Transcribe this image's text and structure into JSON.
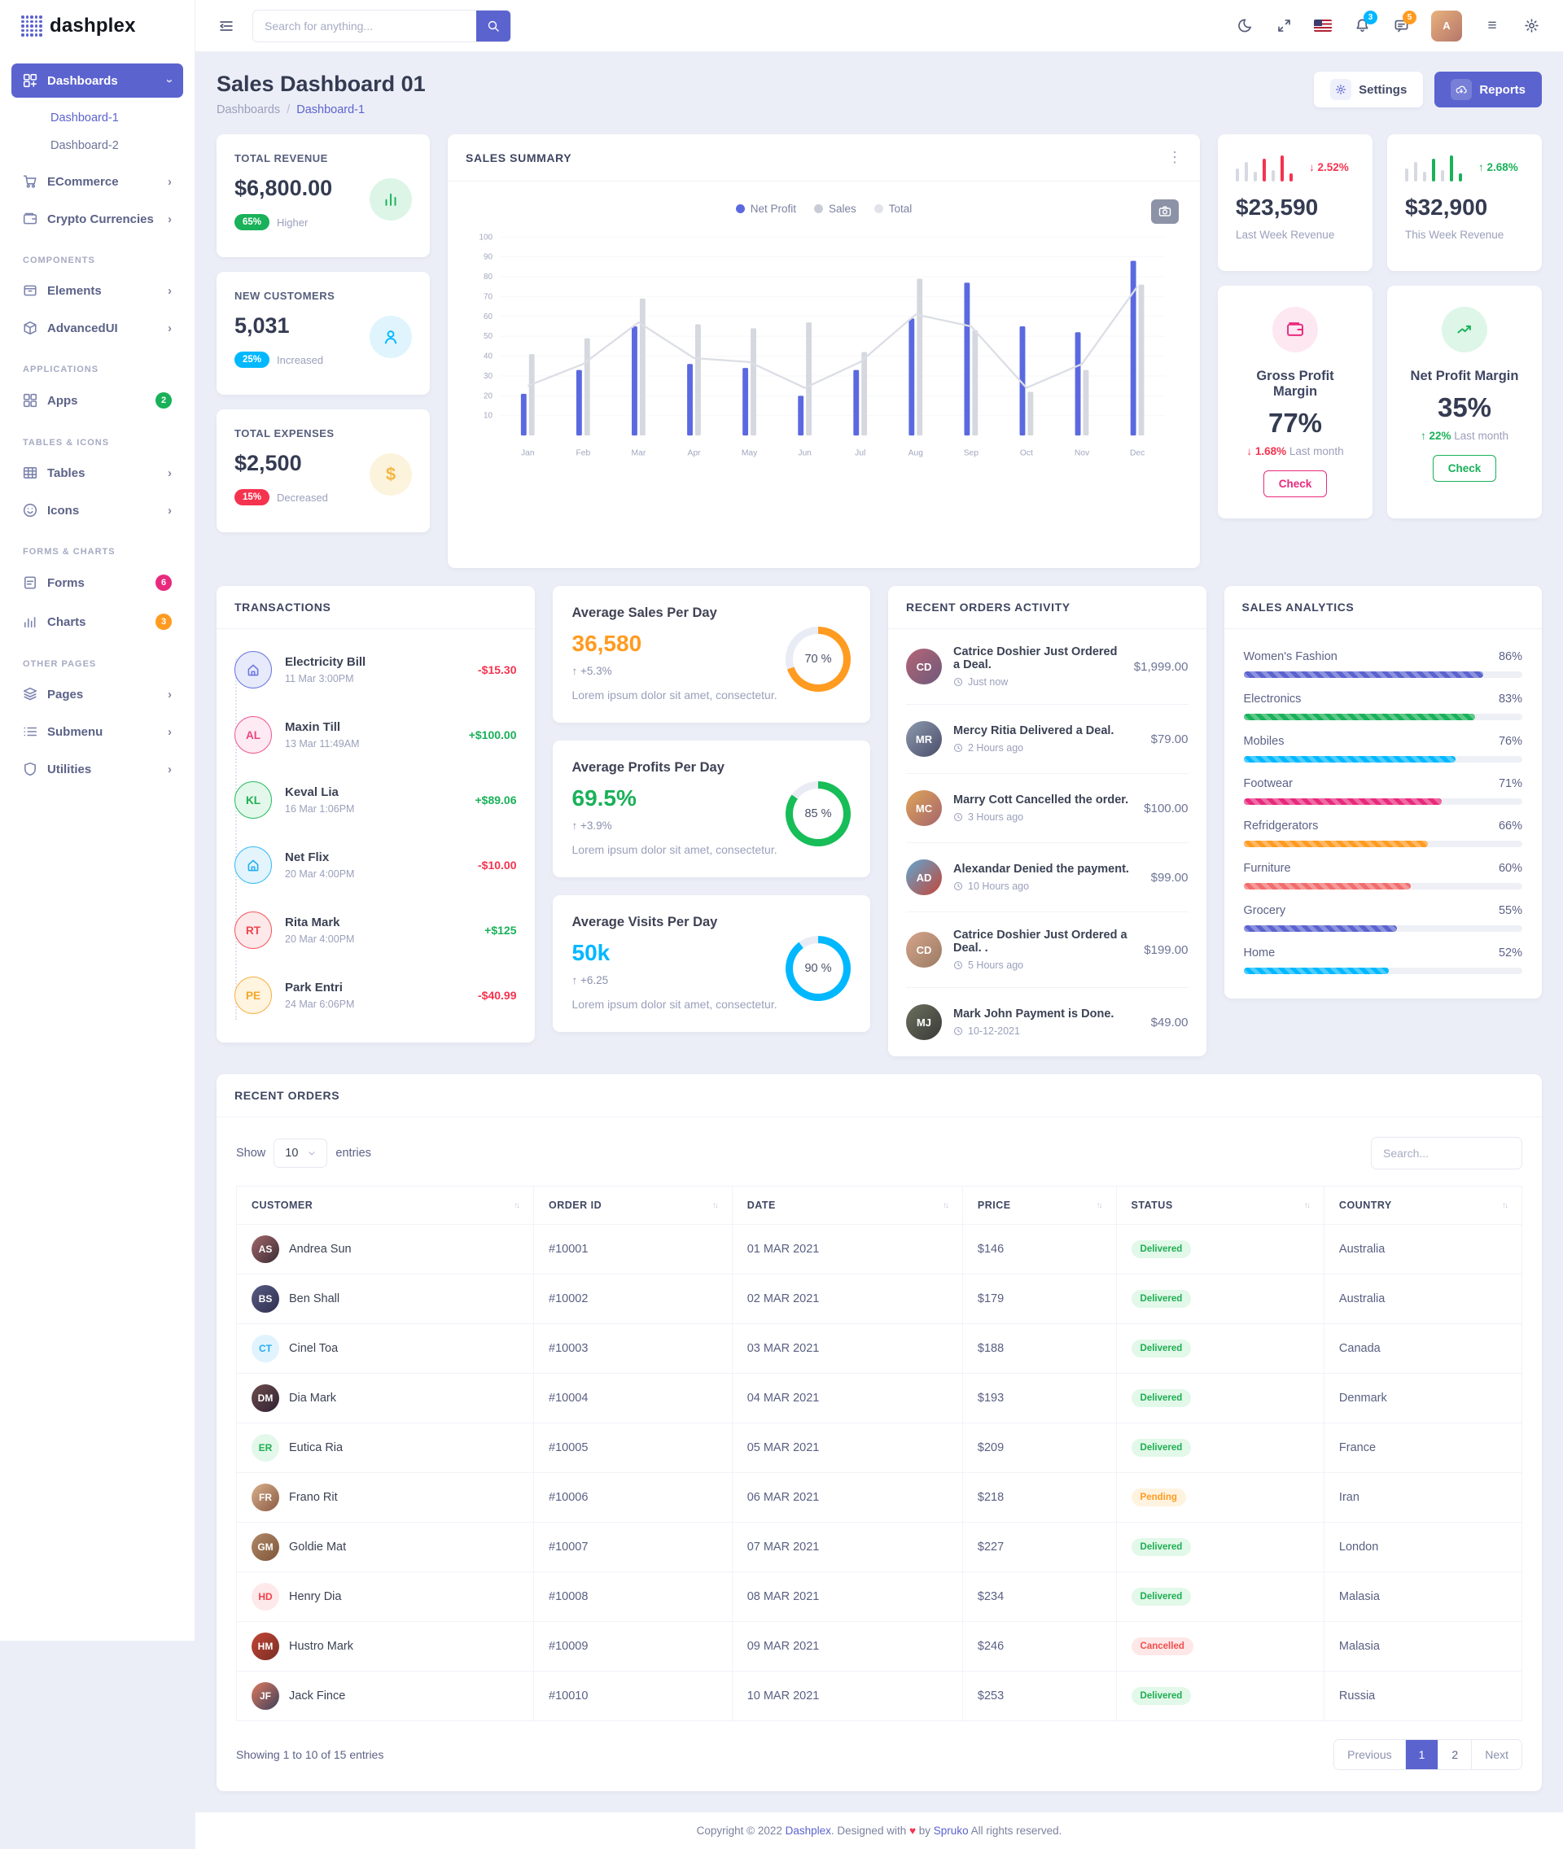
{
  "app": {
    "logo": "dashplex"
  },
  "header": {
    "search_placeholder": "Search for anything...",
    "bell_badge": "3",
    "bell_badge_color": "#01b8ff",
    "chat_badge": "5",
    "chat_badge_color": "#ff9b21",
    "avatar_text": "A"
  },
  "sidebar": {
    "sections": [
      {
        "heading": "",
        "items": [
          {
            "label": "Dashboards",
            "icon": "grid",
            "chevron": "down",
            "active": true,
            "children": [
              {
                "label": "Dashboard-1",
                "active": true
              },
              {
                "label": "Dashboard-2",
                "active": false
              }
            ]
          },
          {
            "label": "ECommerce",
            "icon": "cart",
            "chevron": "right"
          },
          {
            "label": "Crypto Currencies",
            "icon": "wallet",
            "chevron": "right"
          }
        ]
      },
      {
        "heading": "COMPONENTS",
        "items": [
          {
            "label": "Elements",
            "icon": "box",
            "chevron": "right"
          },
          {
            "label": "AdvancedUI",
            "icon": "cube",
            "chevron": "right"
          }
        ]
      },
      {
        "heading": "APPLICATIONS",
        "items": [
          {
            "label": "Apps",
            "icon": "apps",
            "badge": "2",
            "badge_color": "#19b159"
          }
        ]
      },
      {
        "heading": "TABLES & ICONS",
        "items": [
          {
            "label": "Tables",
            "icon": "table",
            "chevron": "right"
          },
          {
            "label": "Icons",
            "icon": "smile",
            "chevron": "right"
          }
        ]
      },
      {
        "heading": "FORMS & CHARTS",
        "items": [
          {
            "label": "Forms",
            "icon": "file",
            "badge": "6",
            "badge_color": "#e82a7d"
          },
          {
            "label": "Charts",
            "icon": "chart",
            "badge": "3",
            "badge_color": "#ff9b21"
          }
        ]
      },
      {
        "heading": "OTHER PAGES",
        "items": [
          {
            "label": "Pages",
            "icon": "pages",
            "chevron": "right"
          },
          {
            "label": "Submenu",
            "icon": "list",
            "chevron": "right"
          },
          {
            "label": "Utilities",
            "icon": "shield",
            "chevron": "right"
          }
        ]
      }
    ]
  },
  "page": {
    "title": "Sales Dashboard 01",
    "breadcrumb": [
      "Dashboards",
      "Dashboard-1"
    ],
    "breadcrumb_sep": "/",
    "settings_label": "Settings",
    "reports_label": "Reports"
  },
  "stats": {
    "cards": [
      {
        "label": "TOTAL REVENUE",
        "value": "$6,800.00",
        "badge": "65%",
        "badge_color": "#19b159",
        "sub": "Higher",
        "icon_color": "#19b159",
        "icon_bg": "#dcf5e7"
      },
      {
        "label": "NEW CUSTOMERS",
        "value": "5,031",
        "badge": "25%",
        "badge_color": "#01b8ff",
        "sub": "Increased",
        "icon_color": "#01b8ff",
        "icon_bg": "#dff4fd"
      },
      {
        "label": "TOTAL EXPENSES",
        "value": "$2,500",
        "badge": "15%",
        "badge_color": "#f5334f",
        "sub": "Decreased",
        "icon_color": "#f3b843",
        "icon_bg": "#fcf3dc"
      }
    ]
  },
  "sales_summary": {
    "title": "SALES SUMMARY",
    "menu_icon": "⋮",
    "legend": [
      {
        "label": "Net Profit",
        "color": "#5b69e0"
      },
      {
        "label": "Sales",
        "color": "#c9ccd6"
      },
      {
        "label": "Total",
        "color": "#e2e3e9"
      }
    ],
    "chart_data": {
      "type": "bar",
      "categories": [
        "Jan",
        "Feb",
        "Mar",
        "Apr",
        "May",
        "Jun",
        "Jul",
        "Aug",
        "Sep",
        "Oct",
        "Nov",
        "Dec"
      ],
      "series": [
        {
          "name": "Net Profit",
          "type": "bar",
          "color": "#5b69e0",
          "values": [
            21,
            33,
            55,
            36,
            34,
            20,
            33,
            59,
            77,
            55,
            52,
            88
          ]
        },
        {
          "name": "Sales",
          "type": "bar",
          "color": "#d6d8df",
          "values": [
            41,
            49,
            69,
            56,
            54,
            57,
            42,
            79,
            53,
            22,
            33,
            76
          ]
        },
        {
          "name": "Total",
          "type": "line",
          "color": "#dcdee6",
          "values": [
            25,
            36,
            57,
            39,
            37,
            24,
            37,
            61,
            55,
            24,
            36,
            75
          ]
        }
      ],
      "ylim": [
        0,
        100
      ],
      "yticks": [
        10,
        20,
        30,
        40,
        50,
        60,
        70,
        80,
        90,
        100
      ],
      "grid": true,
      "legend_position": "top"
    }
  },
  "week_cards": [
    {
      "value": "$23,590",
      "label": "Last Week Revenue",
      "arrow": "↓",
      "delta": "2.52%",
      "delta_color": "#f5334f",
      "spark_color": "#f5334f",
      "spark": [
        16,
        24,
        12,
        28,
        14,
        32,
        10
      ],
      "spark_colored": [
        3,
        5,
        6
      ]
    },
    {
      "value": "$32,900",
      "label": "This Week Revenue",
      "arrow": "↑",
      "delta": "2.68%",
      "delta_color": "#19b159",
      "spark_color": "#19b159",
      "spark": [
        16,
        24,
        12,
        28,
        14,
        32,
        10
      ],
      "spark_colored": [
        3,
        5,
        6
      ]
    }
  ],
  "margin_cards": [
    {
      "title": "Gross Profit Margin",
      "value": "77%",
      "arrow": "↓",
      "delta": "1.68%",
      "delta_suffix": "Last month",
      "delta_color": "#f5334f",
      "icon": "wallet",
      "icon_color": "#e82a7d",
      "icon_bg": "#fde8f2",
      "btn": "Check",
      "btn_color": "#e82a7d"
    },
    {
      "title": "Net Profit Margin",
      "value": "35%",
      "arrow": "↑",
      "delta": "22%",
      "delta_suffix": "Last month",
      "delta_color": "#19b159",
      "icon": "trend",
      "icon_color": "#19b159",
      "icon_bg": "#ddf6e8",
      "btn": "Check",
      "btn_color": "#19b159"
    }
  ],
  "transactions": {
    "title": "TRANSACTIONS",
    "items": [
      {
        "name": "Electricity Bill",
        "time": "11 Mar 3:00PM",
        "amount": "-$15.30",
        "avatar": {
          "kind": "home",
          "fg": "#6c77e0",
          "border": "#6c77e0",
          "bg": "#e7eafb"
        }
      },
      {
        "name": "Maxin Till",
        "time": "13 Mar 11:49AM",
        "amount": "+$100.00",
        "avatar": {
          "kind": "initials",
          "text": "AL",
          "fg": "#e8467c",
          "border": "#ef5a93",
          "bg": "#fdeaf3"
        }
      },
      {
        "name": "Keval Lia",
        "time": "16 Mar 1:06PM",
        "amount": "+$89.06",
        "avatar": {
          "kind": "initials",
          "text": "KL",
          "fg": "#1fae52",
          "border": "#2bbf63",
          "bg": "#e3f8eb"
        }
      },
      {
        "name": "Net Flix",
        "time": "20 Mar 4:00PM",
        "amount": "-$10.00",
        "avatar": {
          "kind": "home",
          "fg": "#21aef0",
          "border": "#3bbcf5",
          "bg": "#e3f4fd"
        }
      },
      {
        "name": "Rita Mark",
        "time": "20 Mar 4:00PM",
        "amount": "+$125",
        "avatar": {
          "kind": "initials",
          "text": "RT",
          "fg": "#f0434c",
          "border": "#f35b63",
          "bg": "#fde9ea"
        }
      },
      {
        "name": "Park Entri",
        "time": "24 Mar 6:06PM",
        "amount": "-$40.99",
        "avatar": {
          "kind": "initials",
          "text": "PE",
          "fg": "#f5a623",
          "border": "#f7b24a",
          "bg": "#fef4e0"
        }
      }
    ]
  },
  "averages": {
    "cards": [
      {
        "title": "Average Sales Per Day",
        "value": "36,580",
        "value_color": "#ff9b21",
        "arrow": "↑",
        "delta": "+5.3%",
        "desc": "Lorem ipsum dolor sit amet, consectetur.",
        "pct": "70 %",
        "pct_num": 70,
        "ring_color": "#ff9b21"
      },
      {
        "title": "Average Profits Per Day",
        "value": "69.5%",
        "value_color": "#19b159",
        "arrow": "↑",
        "delta": "+3.9%",
        "desc": "Lorem ipsum dolor sit amet, consectetur.",
        "pct": "85 %",
        "pct_num": 85,
        "ring_color": "#17bd58"
      },
      {
        "title": "Average Visits Per Day",
        "value": "50k",
        "value_color": "#01b8ff",
        "arrow": "↑",
        "delta": "+6.25",
        "desc": "Lorem ipsum dolor sit amet, consectetur.",
        "pct": "90 %",
        "pct_num": 90,
        "ring_color": "#01b8ff"
      }
    ]
  },
  "activity": {
    "title": "RECENT ORDERS ACTIVITY",
    "items": [
      {
        "text": "Catrice Doshier Just Ordered a Deal.",
        "time": "Just now",
        "price": "$1,999.00",
        "avatar": {
          "text": "CD",
          "c1": "#b56576",
          "c2": "#6d597a"
        }
      },
      {
        "text": "Mercy Ritia Delivered a Deal.",
        "time": "2 Hours ago",
        "price": "$79.00",
        "avatar": {
          "text": "MR",
          "c1": "#8d99ae",
          "c2": "#4a4e69"
        }
      },
      {
        "text": "Marry Cott Cancelled the order.",
        "time": "3 Hours ago",
        "price": "$100.00",
        "avatar": {
          "text": "MC",
          "c1": "#e0a458",
          "c2": "#a4656d"
        }
      },
      {
        "text": "Alexandar Denied the payment.",
        "time": "10 Hours ago",
        "price": "$99.00",
        "avatar": {
          "text": "AD",
          "c1": "#5fa8d3",
          "c2": "#c44536"
        }
      },
      {
        "text": "Catrice Doshier Just Ordered a Deal. .",
        "time": "5 Hours ago",
        "price": "$199.00",
        "avatar": {
          "text": "CD",
          "c1": "#d5a48a",
          "c2": "#9a7b64"
        }
      },
      {
        "text": "Mark John Payment is Done.",
        "time": "10-12-2021",
        "price": "$49.00",
        "avatar": {
          "text": "MJ",
          "c1": "#6b705c",
          "c2": "#3a3a3a"
        }
      }
    ]
  },
  "sales_analytics": {
    "title": "SALES ANALYTICS",
    "items": [
      {
        "label": "Women's Fashion",
        "pct": "86%",
        "width": "86%",
        "color": "#5b63cf"
      },
      {
        "label": "Electronics",
        "pct": "83%",
        "width": "83%",
        "color": "#19b159"
      },
      {
        "label": "Mobiles",
        "pct": "76%",
        "width": "76%",
        "color": "#01b8ff"
      },
      {
        "label": "Footwear",
        "pct": "71%",
        "width": "71%",
        "color": "#e82a7d"
      },
      {
        "label": "Refridgerators",
        "pct": "66%",
        "width": "66%",
        "color": "#ff9b21"
      },
      {
        "label": "Furniture",
        "pct": "60%",
        "width": "60%",
        "color": "#f16d6d"
      },
      {
        "label": "Grocery",
        "pct": "55%",
        "width": "55%",
        "color": "#5b63cf"
      },
      {
        "label": "Home",
        "pct": "52%",
        "width": "52%",
        "color": "#01b8ff"
      }
    ]
  },
  "recent_orders": {
    "title": "RECENT ORDERS",
    "show_label": "Show",
    "page_size": "10",
    "entries_label": "entries",
    "search_placeholder": "Search...",
    "columns": [
      "CUSTOMER",
      "ORDER ID",
      "DATE",
      "PRICE",
      "STATUS",
      "COUNTRY"
    ],
    "rows": [
      {
        "customer": "Andrea Sun",
        "avatar": {
          "type": "photo",
          "text": "AS",
          "c1": "#a26769",
          "c2": "#3b2c35"
        },
        "order_id": "#10001",
        "date": "01 MAR 2021",
        "price": "$146",
        "status": "Delivered",
        "country": "Australia"
      },
      {
        "customer": "Ben Shall",
        "avatar": {
          "type": "photo",
          "text": "BS",
          "c1": "#595b83",
          "c2": "#2e2f4f"
        },
        "order_id": "#10002",
        "date": "02 MAR 2021",
        "price": "$179",
        "status": "Delivered",
        "country": "Australia"
      },
      {
        "customer": "Cinel Toa",
        "avatar": {
          "type": "initials",
          "text": "CT",
          "fg": "#21aef0",
          "bg": "#e1f3fd"
        },
        "order_id": "#10003",
        "date": "03 MAR 2021",
        "price": "$188",
        "status": "Delivered",
        "country": "Canada"
      },
      {
        "customer": "Dia Mark",
        "avatar": {
          "type": "photo",
          "text": "DM",
          "c1": "#6e4c4b",
          "c2": "#2f2235"
        },
        "order_id": "#10004",
        "date": "04 MAR 2021",
        "price": "$193",
        "status": "Delivered",
        "country": "Denmark"
      },
      {
        "customer": "Eutica Ria",
        "avatar": {
          "type": "initials",
          "text": "ER",
          "fg": "#1fae52",
          "bg": "#e3f8eb"
        },
        "order_id": "#10005",
        "date": "05 MAR 2021",
        "price": "$209",
        "status": "Delivered",
        "country": "France"
      },
      {
        "customer": "Frano Rit",
        "avatar": {
          "type": "photo",
          "text": "FR",
          "c1": "#d9b08c",
          "c2": "#8a5a44"
        },
        "order_id": "#10006",
        "date": "06 MAR 2021",
        "price": "$218",
        "status": "Pending",
        "country": "Iran"
      },
      {
        "customer": "Goldie Mat",
        "avatar": {
          "type": "photo",
          "text": "GM",
          "c1": "#b08968",
          "c2": "#7f5539"
        },
        "order_id": "#10007",
        "date": "07 MAR 2021",
        "price": "$227",
        "status": "Delivered",
        "country": "London"
      },
      {
        "customer": "Henry Dia",
        "avatar": {
          "type": "initials",
          "text": "HD",
          "fg": "#f0434c",
          "bg": "#fde9ea"
        },
        "order_id": "#10008",
        "date": "08 MAR 2021",
        "price": "$234",
        "status": "Delivered",
        "country": "Malasia"
      },
      {
        "customer": "Hustro Mark",
        "avatar": {
          "type": "photo",
          "text": "HM",
          "c1": "#c44536",
          "c2": "#772e25"
        },
        "order_id": "#10009",
        "date": "09 MAR 2021",
        "price": "$246",
        "status": "Cancelled",
        "country": "Malasia"
      },
      {
        "customer": "Jack Fince",
        "avatar": {
          "type": "photo",
          "text": "JF",
          "c1": "#e07a5f",
          "c2": "#3d405b"
        },
        "order_id": "#10010",
        "date": "10 MAR 2021",
        "price": "$253",
        "status": "Delivered",
        "country": "Russia"
      }
    ],
    "summary": "Showing 1 to 10 of 15 entries",
    "pagination": {
      "prev": "Previous",
      "pages": [
        "1",
        "2"
      ],
      "active": "1",
      "next": "Next"
    }
  },
  "footer": {
    "p1": "Copyright © 2022",
    "link1": "Dashplex",
    "p2": ". Designed with",
    "heart": "♥",
    "p3": "by",
    "link2": "Spruko",
    "p4": "All rights reserved."
  }
}
